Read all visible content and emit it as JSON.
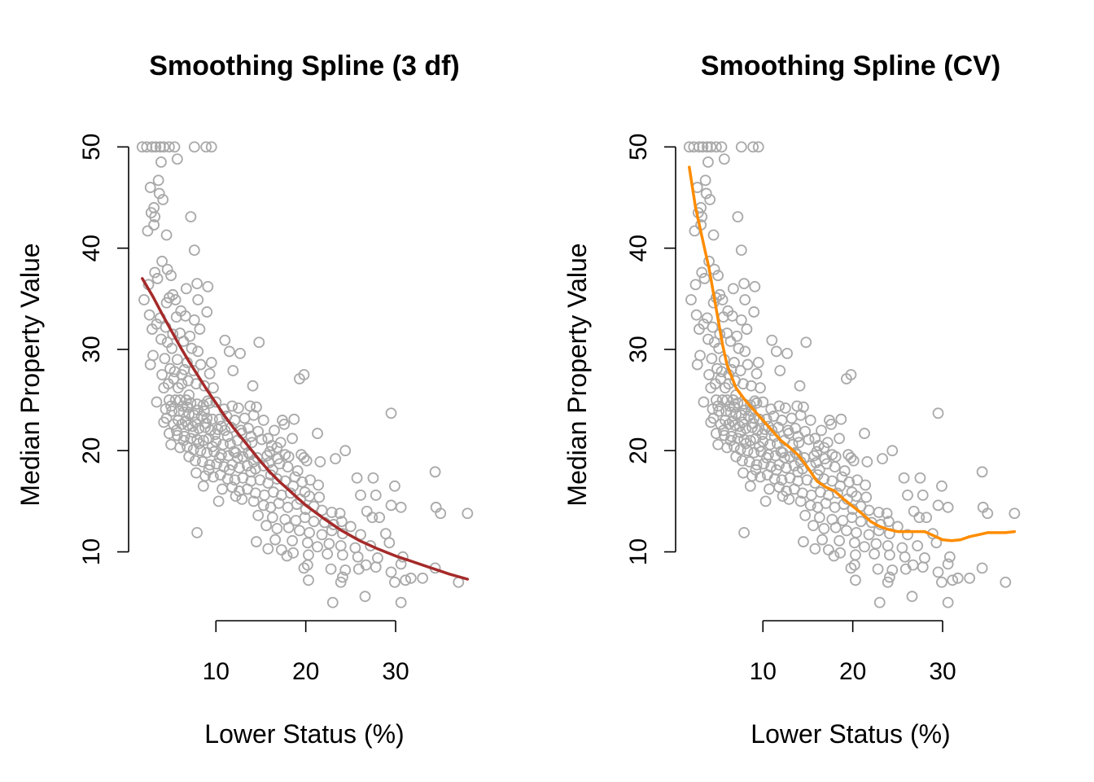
{
  "chart_data": [
    {
      "type": "scatter",
      "title": "Smoothing Spline (3 df)",
      "xlabel": "Lower Status (%)",
      "ylabel": "Median Property Value",
      "xlim": [
        1.73,
        37.97
      ],
      "ylim": [
        5,
        50
      ],
      "xticks": [
        10,
        20,
        30
      ],
      "yticks": [
        10,
        20,
        30,
        40,
        50
      ],
      "colors": {
        "points": "#a9a9a9",
        "fit": "#a52a2a"
      },
      "fit_series": {
        "x": [
          1.8,
          3,
          4,
          5,
          6,
          7,
          8,
          9,
          10,
          11,
          12,
          13,
          14,
          15,
          16,
          17,
          18,
          19,
          20,
          22,
          24,
          26,
          28,
          30,
          32,
          34,
          36,
          38
        ],
        "y": [
          37,
          35.2,
          33.5,
          31.9,
          30.3,
          28.8,
          27.4,
          26,
          24.7,
          23.4,
          22.2,
          21.1,
          20,
          18.9,
          17.9,
          17,
          16.2,
          15.4,
          14.6,
          13.3,
          12.1,
          11.1,
          10.3,
          9.6,
          9,
          8.4,
          7.8,
          7.3
        ]
      }
    },
    {
      "type": "scatter",
      "title": "Smoothing Spline (CV)",
      "xlabel": "Lower Status (%)",
      "ylabel": "Median Property Value",
      "xlim": [
        1.73,
        37.97
      ],
      "ylim": [
        5,
        50
      ],
      "xticks": [
        10,
        20,
        30
      ],
      "yticks": [
        10,
        20,
        30,
        40,
        50
      ],
      "colors": {
        "points": "#a9a9a9",
        "fit": "#ff8c00"
      },
      "fit_series": {
        "x": [
          1.8,
          2.5,
          3,
          3.5,
          4,
          4.5,
          5,
          5.5,
          6,
          7,
          8,
          9,
          10,
          11,
          12,
          13,
          14,
          15,
          16,
          17,
          18,
          19,
          20,
          21,
          22,
          23,
          24,
          25,
          26,
          27,
          28,
          29,
          30,
          31,
          32,
          33,
          34,
          35,
          36,
          37,
          38
        ],
        "y": [
          48,
          44,
          42,
          40,
          38,
          35.5,
          33,
          30.5,
          28.5,
          26.2,
          25,
          24,
          23,
          22,
          21,
          20.3,
          19.5,
          18.3,
          17,
          16.4,
          16,
          15.2,
          14.5,
          13.8,
          13,
          12.5,
          12.2,
          12,
          12,
          12,
          12,
          11.6,
          11.2,
          11.1,
          11.2,
          11.5,
          11.7,
          11.9,
          11.9,
          11.9,
          12
        ]
      }
    }
  ],
  "scatter_points": [
    [
      1.8,
      50
    ],
    [
      2.3,
      50
    ],
    [
      2.9,
      50
    ],
    [
      3.3,
      50
    ],
    [
      3.8,
      50
    ],
    [
      4.2,
      50
    ],
    [
      4.8,
      50
    ],
    [
      5.4,
      50
    ],
    [
      7.6,
      50
    ],
    [
      8.9,
      50
    ],
    [
      9.5,
      50
    ],
    [
      5.7,
      48.8
    ],
    [
      3.9,
      48.5
    ],
    [
      3.6,
      46.7
    ],
    [
      2.7,
      46
    ],
    [
      3.7,
      45.4
    ],
    [
      4.1,
      44.8
    ],
    [
      3.1,
      44
    ],
    [
      2.8,
      43.5
    ],
    [
      3.2,
      43.1
    ],
    [
      2.4,
      41.7
    ],
    [
      3.1,
      42.3
    ],
    [
      4.5,
      41.3
    ],
    [
      7.2,
      43.1
    ],
    [
      7.6,
      39.8
    ],
    [
      4.0,
      38.7
    ],
    [
      4.6,
      37.9
    ],
    [
      3.2,
      37.6
    ],
    [
      5.0,
      37.3
    ],
    [
      3.5,
      37.0
    ],
    [
      7.9,
      36.5
    ],
    [
      2.5,
      36.4
    ],
    [
      9.1,
      36.2
    ],
    [
      6.7,
      36.0
    ],
    [
      5.2,
      35.4
    ],
    [
      4.8,
      35.1
    ],
    [
      2.0,
      34.9
    ],
    [
      5.5,
      34.9
    ],
    [
      4.5,
      34.6
    ],
    [
      8.0,
      34.9
    ],
    [
      6.1,
      33.8
    ],
    [
      9.0,
      33.7
    ],
    [
      2.6,
      33.4
    ],
    [
      3.8,
      33.1
    ],
    [
      5.6,
      33.2
    ],
    [
      6.6,
      33.3
    ],
    [
      7.6,
      32.9
    ],
    [
      3.4,
      32.5
    ],
    [
      4.4,
      32.2
    ],
    [
      8.2,
      32.0
    ],
    [
      2.9,
      32.0
    ],
    [
      6.0,
      31.6
    ],
    [
      5.2,
      31.5
    ],
    [
      7.1,
      31.3
    ],
    [
      3.9,
      31.0
    ],
    [
      4.6,
      30.7
    ],
    [
      6.4,
      30.8
    ],
    [
      5.1,
      30.1
    ],
    [
      7.3,
      30.1
    ],
    [
      8.0,
      29.8
    ],
    [
      11.0,
      30.9
    ],
    [
      11.5,
      29.8
    ],
    [
      12.7,
      29.6
    ],
    [
      14.8,
      30.7
    ],
    [
      3.0,
      29.4
    ],
    [
      4.3,
      29.1
    ],
    [
      5.7,
      29.0
    ],
    [
      6.8,
      28.7
    ],
    [
      8.3,
      28.5
    ],
    [
      9.5,
      28.7
    ],
    [
      2.7,
      28.5
    ],
    [
      4.9,
      28.1
    ],
    [
      6.5,
      28.0
    ],
    [
      7.5,
      27.9
    ],
    [
      9.3,
      27.6
    ],
    [
      11.9,
      27.9
    ],
    [
      4.0,
      27.5
    ],
    [
      5.3,
      27.1
    ],
    [
      6.2,
      26.6
    ],
    [
      7.8,
      26.6
    ],
    [
      8.7,
      26.4
    ],
    [
      9.7,
      26.2
    ],
    [
      4.7,
      26.6
    ],
    [
      5.8,
      26.2
    ],
    [
      14.1,
      26.4
    ],
    [
      19.3,
      27.1
    ],
    [
      19.8,
      27.5
    ],
    [
      3.4,
      24.8
    ],
    [
      4.8,
      25.0
    ],
    [
      5.5,
      25.0
    ],
    [
      6.0,
      25.0
    ],
    [
      6.7,
      25.0
    ],
    [
      7.2,
      24.7
    ],
    [
      7.9,
      24.6
    ],
    [
      8.6,
      24.5
    ],
    [
      9.3,
      24.7
    ],
    [
      10.0,
      24.8
    ],
    [
      10.9,
      24.1
    ],
    [
      11.8,
      24.4
    ],
    [
      12.5,
      24.2
    ],
    [
      13.8,
      24.4
    ],
    [
      14.5,
      24.3
    ],
    [
      4.4,
      24.1
    ],
    [
      5.1,
      23.9
    ],
    [
      5.9,
      23.9
    ],
    [
      6.4,
      23.8
    ],
    [
      7.0,
      23.6
    ],
    [
      7.6,
      23.5
    ],
    [
      8.4,
      23.4
    ],
    [
      9.0,
      23.2
    ],
    [
      9.6,
      23.1
    ],
    [
      10.4,
      23.1
    ],
    [
      11.2,
      23.4
    ],
    [
      12.1,
      23.0
    ],
    [
      13.2,
      23.2
    ],
    [
      14.2,
      23.5
    ],
    [
      15.3,
      23.0
    ],
    [
      17.4,
      23.0
    ],
    [
      18.7,
      23.1
    ],
    [
      4.2,
      22.8
    ],
    [
      5.3,
      22.6
    ],
    [
      6.2,
      22.6
    ],
    [
      6.9,
      22.5
    ],
    [
      7.4,
      22.4
    ],
    [
      8.1,
      22.2
    ],
    [
      8.8,
      22.3
    ],
    [
      9.4,
      22.0
    ],
    [
      10.2,
      22.1
    ],
    [
      11.0,
      22.0
    ],
    [
      11.7,
      22.3
    ],
    [
      12.8,
      22.0
    ],
    [
      13.6,
      22.2
    ],
    [
      14.7,
      21.9
    ],
    [
      16.5,
      22.0
    ],
    [
      17.6,
      22.6
    ],
    [
      21.3,
      21.7
    ],
    [
      4.8,
      21.7
    ],
    [
      5.7,
      21.5
    ],
    [
      6.5,
      21.4
    ],
    [
      7.2,
      21.2
    ],
    [
      7.9,
      21.1
    ],
    [
      8.6,
      21.0
    ],
    [
      9.2,
      21.2
    ],
    [
      10.0,
      20.9
    ],
    [
      10.8,
      20.6
    ],
    [
      11.6,
      20.7
    ],
    [
      12.4,
      21.0
    ],
    [
      13.3,
      20.6
    ],
    [
      14.0,
      20.8
    ],
    [
      15.1,
      21.1
    ],
    [
      16.2,
      20.5
    ],
    [
      17.2,
      20.8
    ],
    [
      18.5,
      21.2
    ],
    [
      5.0,
      20.6
    ],
    [
      6.0,
      20.3
    ],
    [
      6.8,
      20.4
    ],
    [
      7.5,
      20.1
    ],
    [
      8.3,
      20.0
    ],
    [
      9.0,
      19.8
    ],
    [
      9.8,
      19.9
    ],
    [
      10.6,
      19.6
    ],
    [
      11.4,
      19.5
    ],
    [
      12.2,
      19.8
    ],
    [
      13.0,
      19.4
    ],
    [
      13.8,
      19.6
    ],
    [
      14.6,
      19.3
    ],
    [
      15.7,
      19.5
    ],
    [
      16.9,
      19.2
    ],
    [
      18.1,
      19.4
    ],
    [
      19.5,
      19.6
    ],
    [
      20.1,
      19.0
    ],
    [
      24.4,
      20.0
    ],
    [
      19.8,
      19.3
    ],
    [
      7.0,
      19.4
    ],
    [
      7.7,
      19.0
    ],
    [
      8.5,
      18.9
    ],
    [
      9.3,
      18.6
    ],
    [
      10.1,
      18.7
    ],
    [
      10.9,
      18.4
    ],
    [
      11.8,
      18.6
    ],
    [
      12.6,
      18.3
    ],
    [
      13.5,
      18.5
    ],
    [
      14.4,
      18.2
    ],
    [
      15.3,
      18.5
    ],
    [
      16.3,
      18.1
    ],
    [
      17.1,
      18.7
    ],
    [
      18.0,
      18.4
    ],
    [
      19.1,
      18.0
    ],
    [
      21.6,
      18.9
    ],
    [
      23.3,
      19.2
    ],
    [
      7.8,
      17.8
    ],
    [
      8.8,
      17.5
    ],
    [
      9.7,
      17.4
    ],
    [
      10.5,
      17.6
    ],
    [
      11.3,
      17.2
    ],
    [
      12.1,
      17.1
    ],
    [
      13.0,
      17.3
    ],
    [
      13.9,
      17.0
    ],
    [
      14.9,
      17.1
    ],
    [
      15.8,
      16.8
    ],
    [
      16.8,
      17.2
    ],
    [
      17.7,
      17.0
    ],
    [
      18.8,
      17.4
    ],
    [
      19.6,
      16.9
    ],
    [
      20.5,
      17.1
    ],
    [
      21.4,
      16.6
    ],
    [
      25.7,
      17.3
    ],
    [
      27.5,
      17.3
    ],
    [
      29.9,
      16.5
    ],
    [
      34.4,
      17.9
    ],
    [
      8.6,
      16.5
    ],
    [
      11.8,
      16.4
    ],
    [
      12.6,
      16.0
    ],
    [
      13.5,
      16.2
    ],
    [
      14.4,
      15.8
    ],
    [
      15.4,
      15.6
    ],
    [
      16.4,
      15.9
    ],
    [
      17.3,
      15.6
    ],
    [
      18.3,
      15.8
    ],
    [
      19.4,
      15.2
    ],
    [
      20.4,
      15.5
    ],
    [
      21.5,
      15.4
    ],
    [
      26.1,
      15.6
    ],
    [
      27.8,
      15.6
    ],
    [
      10.3,
      15.0
    ],
    [
      12.9,
      15.2
    ],
    [
      14.2,
      15.0
    ],
    [
      15.3,
      14.6
    ],
    [
      16.1,
      14.4
    ],
    [
      17.0,
      14.8
    ],
    [
      18.0,
      14.4
    ],
    [
      19.0,
      14.7
    ],
    [
      20.0,
      14.2
    ],
    [
      20.9,
      14.5
    ],
    [
      21.8,
      14.1
    ],
    [
      22.9,
      13.9
    ],
    [
      23.8,
      13.8
    ],
    [
      26.8,
      14.0
    ],
    [
      29.5,
      14.6
    ],
    [
      30.6,
      14.4
    ],
    [
      34.5,
      14.4
    ],
    [
      14.7,
      13.6
    ],
    [
      16.3,
      13.4
    ],
    [
      17.7,
      13.2
    ],
    [
      18.9,
      13.1
    ],
    [
      19.9,
      13.4
    ],
    [
      20.9,
      13.0
    ],
    [
      22.1,
      12.9
    ],
    [
      23.1,
      12.7
    ],
    [
      24.0,
      13.0
    ],
    [
      25.0,
      12.5
    ],
    [
      27.4,
      13.4
    ],
    [
      28.2,
      13.4
    ],
    [
      35.0,
      13.8
    ],
    [
      38.0,
      13.8
    ],
    [
      15.6,
      12.6
    ],
    [
      16.8,
      12.3
    ],
    [
      18.1,
      12.4
    ],
    [
      19.3,
      12.1
    ],
    [
      20.4,
      11.9
    ],
    [
      21.8,
      11.7
    ],
    [
      22.9,
      12.1
    ],
    [
      24.1,
      11.8
    ],
    [
      26.1,
      11.7
    ],
    [
      28.9,
      11.8
    ],
    [
      14.5,
      11.0
    ],
    [
      16.6,
      11.2
    ],
    [
      18.5,
      11.1
    ],
    [
      20.2,
      10.9
    ],
    [
      21.3,
      10.5
    ],
    [
      22.6,
      10.8
    ],
    [
      23.9,
      10.6
    ],
    [
      25.5,
      10.4
    ],
    [
      27.2,
      10.6
    ],
    [
      29.3,
      10.9
    ],
    [
      15.8,
      10.3
    ],
    [
      17.3,
      10.2
    ],
    [
      18.6,
      9.9
    ],
    [
      20.3,
      9.7
    ],
    [
      22.4,
      9.8
    ],
    [
      24.1,
      9.7
    ],
    [
      25.8,
      9.5
    ],
    [
      28.0,
      9.4
    ],
    [
      30.8,
      9.5
    ],
    [
      7.9,
      11.9
    ],
    [
      17.9,
      9.6
    ],
    [
      19.8,
      8.4
    ],
    [
      20.2,
      8.7
    ],
    [
      22.8,
      8.3
    ],
    [
      26.7,
      8.7
    ],
    [
      27.8,
      8.5
    ],
    [
      30.6,
      8.8
    ],
    [
      34.4,
      8.4
    ],
    [
      24.4,
      8.2
    ],
    [
      25.9,
      8.3
    ],
    [
      29.5,
      8.0
    ],
    [
      31.7,
      7.4
    ],
    [
      24.1,
      7.5
    ],
    [
      20.3,
      7.2
    ],
    [
      23.9,
      7.0
    ],
    [
      29.9,
      7.0
    ],
    [
      31.1,
      7.2
    ],
    [
      33.0,
      7.4
    ],
    [
      37.0,
      7.0
    ],
    [
      26.6,
      5.6
    ],
    [
      23.0,
      5.0
    ],
    [
      30.6,
      5.0
    ],
    [
      29.5,
      23.7
    ],
    [
      6.3,
      24.4
    ],
    [
      7.0,
      25.5
    ],
    [
      8.0,
      24.0
    ],
    [
      8.7,
      23.9
    ],
    [
      9.1,
      24.9
    ],
    [
      5.8,
      23.0
    ],
    [
      6.6,
      22.9
    ],
    [
      7.7,
      22.8
    ],
    [
      8.9,
      22.7
    ],
    [
      10.6,
      22.4
    ],
    [
      12.9,
      21.7
    ],
    [
      13.9,
      21.4
    ],
    [
      15.8,
      21.2
    ],
    [
      16.8,
      20.3
    ],
    [
      9.9,
      21.6
    ],
    [
      11.3,
      21.4
    ],
    [
      8.1,
      20.7
    ],
    [
      9.6,
      20.4
    ],
    [
      12.0,
      19.9
    ],
    [
      13.6,
      19.8
    ],
    [
      16.0,
      19.9
    ],
    [
      17.7,
      19.6
    ],
    [
      10.4,
      19.3
    ],
    [
      12.4,
      19.3
    ],
    [
      14.2,
      18.9
    ],
    [
      15.9,
      18.8
    ],
    [
      11.5,
      18.1
    ],
    [
      13.9,
      17.9
    ],
    [
      16.1,
      17.6
    ],
    [
      18.6,
      16.5
    ],
    [
      19.9,
      15.9
    ],
    [
      9.2,
      18.1
    ],
    [
      10.7,
      16.2
    ],
    [
      12.2,
      15.5
    ],
    [
      6.2,
      27.5
    ],
    [
      6.9,
      26.9
    ],
    [
      5.4,
      27.8
    ],
    [
      4.2,
      26.2
    ],
    [
      5.0,
      24.4
    ],
    [
      4.5,
      23.2
    ],
    [
      6.8,
      24.3
    ],
    [
      7.5,
      21.8
    ],
    [
      6.4,
      21.0
    ],
    [
      5.6,
      22.0
    ]
  ]
}
